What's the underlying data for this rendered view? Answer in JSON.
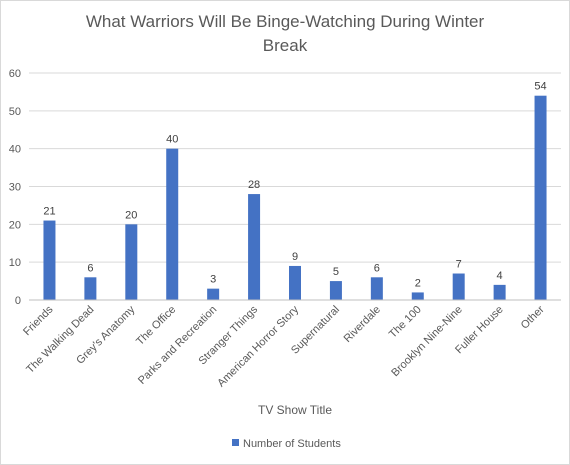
{
  "chart_data": {
    "type": "bar",
    "title_lines": [
      "What Warriors Will Be Binge-Watching During Winter",
      "Break"
    ],
    "xlabel": "TV Show Title",
    "ylabel": "",
    "categories": [
      "Friends",
      "The Walking Dead",
      "Grey's Anatomy",
      "The Office",
      "Parks and Recreation",
      "Stranger Things",
      "American Horror Story",
      "Supernatural",
      "Riverdale",
      "The 100",
      "Brooklyn Nine-Nine",
      "Fuller House",
      "Other"
    ],
    "series": [
      {
        "name": "Number of Students",
        "values": [
          21,
          6,
          20,
          40,
          3,
          28,
          9,
          5,
          6,
          2,
          7,
          4,
          54
        ],
        "color": "#4472C4"
      }
    ],
    "ylim": [
      0,
      60
    ],
    "yticks": [
      0,
      10,
      20,
      30,
      40,
      50,
      60
    ],
    "grid": true,
    "gridColor": "#d9d9d9",
    "legend_position": "bottom",
    "data_labels": true
  }
}
